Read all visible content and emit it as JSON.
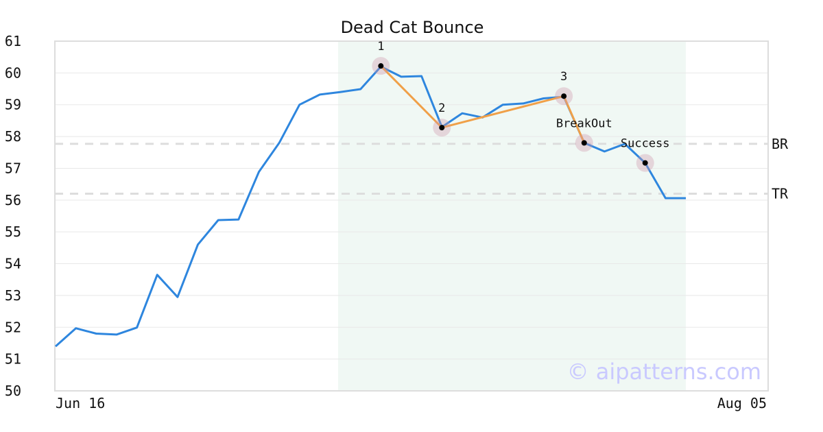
{
  "chart_data": {
    "type": "line",
    "title": "Dead Cat Bounce",
    "xlabel": "",
    "ylabel": "",
    "x_ticks": [
      "Jun 16",
      "Aug 05"
    ],
    "ylim": [
      50,
      61
    ],
    "y_ticks": [
      50,
      51,
      52,
      53,
      54,
      55,
      56,
      57,
      58,
      59,
      60,
      61
    ],
    "grid": "horizontal",
    "series": [
      {
        "color": "#2e86de",
        "values": [
          51.4,
          51.97,
          51.8,
          51.77,
          51.99,
          53.65,
          52.95,
          54.6,
          55.37,
          55.39,
          56.89,
          57.8,
          59.0,
          59.32,
          59.4,
          59.49,
          60.2,
          59.88,
          59.9,
          58.3,
          58.73,
          58.6,
          59.0,
          59.04,
          59.2,
          59.25,
          57.8,
          57.53,
          57.77,
          57.17,
          56.06,
          56.06
        ]
      }
    ],
    "highlight_region": {
      "from_index": 14,
      "to_index": 31,
      "color": "#f0f8f4"
    },
    "pattern_line": {
      "color": "#f0a048",
      "indices": [
        16,
        19,
        25,
        26
      ]
    },
    "pattern_points": [
      {
        "index": 16,
        "value": 60.22,
        "label": "1"
      },
      {
        "index": 19,
        "value": 58.28,
        "label": "2"
      },
      {
        "index": 25,
        "value": 59.27,
        "label": "3"
      },
      {
        "index": 26,
        "value": 57.8,
        "label": "BreakOut"
      },
      {
        "index": 29,
        "value": 57.17,
        "label": "Success"
      }
    ],
    "reference_lines": [
      {
        "label": "BR",
        "value": 57.77
      },
      {
        "label": "TR",
        "value": 56.2
      }
    ],
    "watermark": "© aipatterns.com"
  }
}
